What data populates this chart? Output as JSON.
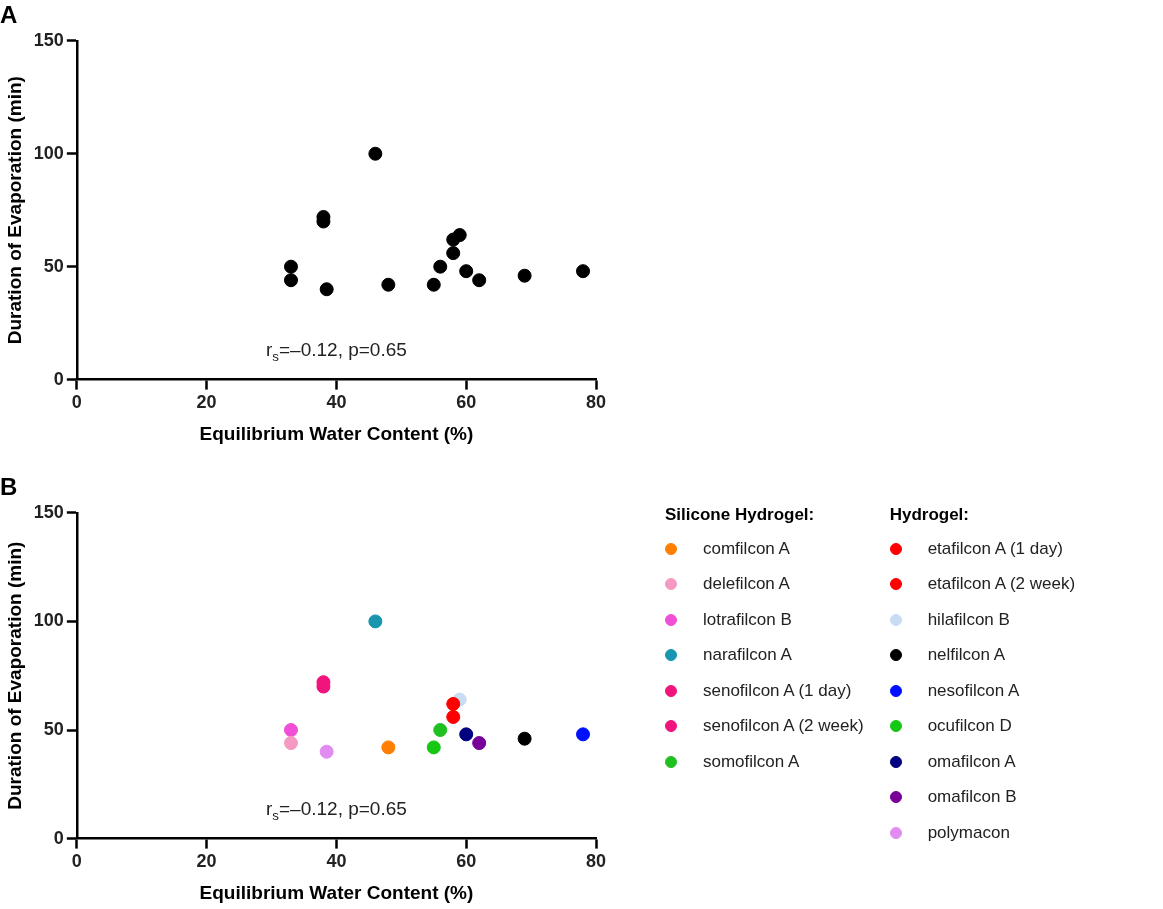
{
  "chart_data": [
    {
      "type": "scatter",
      "title": "A",
      "xlabel": "Equilibrium Water Content (%)",
      "ylabel": "Duration of Evaporation (min)",
      "xlim": [
        0,
        80
      ],
      "xticks": [
        0,
        20,
        40,
        60,
        80
      ],
      "ylim": [
        0,
        150
      ],
      "yticks": [
        0,
        50,
        100,
        150
      ],
      "grid": false,
      "legend": false,
      "marker": "circle",
      "annotations": [
        "r$_{s}$=–0.12, p=0.65"
      ],
      "series": [
        {
          "color": "#000000",
          "x": [
            33,
            33,
            38,
            38,
            38.5,
            46,
            48,
            55,
            56,
            58,
            58,
            59,
            60,
            62,
            69,
            78
          ],
          "values": [
            44,
            50,
            72,
            70,
            40,
            100,
            42,
            42,
            50,
            56,
            62,
            64,
            48,
            44,
            46,
            48
          ]
        }
      ]
    },
    {
      "type": "scatter",
      "title": "B",
      "xlabel": "Equilibrium Water Content (%)",
      "ylabel": "Duration of Evaporation (min)",
      "xlim": [
        0,
        80
      ],
      "xticks": [
        0,
        20,
        40,
        60,
        80
      ],
      "ylim": [
        0,
        150
      ],
      "yticks": [
        0,
        50,
        100,
        150
      ],
      "grid": false,
      "legend": "right",
      "marker": "circle",
      "annotations": [
        "r$_{s}$=–0.12, p=0.65"
      ],
      "series": [
        {
          "name": "Silicone Hydrogel:"
        },
        {
          "name": "comfilcon A",
          "color": "#ff8000",
          "x": [
            48
          ],
          "values": [
            42
          ]
        },
        {
          "name": "delefilcon A",
          "color": "#f49ac2",
          "x": [
            33
          ],
          "values": [
            44
          ]
        },
        {
          "name": "lotrafilcon B",
          "color": "#f050d8",
          "x": [
            33
          ],
          "values": [
            50
          ]
        },
        {
          "name": "narafilcon A",
          "color": "#1896b0",
          "x": [
            46
          ],
          "values": [
            100
          ]
        },
        {
          "name": "senofilcon A (1 day)",
          "color": "#f0147c",
          "x": [
            38
          ],
          "values": [
            72
          ]
        },
        {
          "name": "senofilcon A (2 week)",
          "color": "#f0147c",
          "x": [
            38
          ],
          "values": [
            70
          ]
        },
        {
          "name": "somofilcon A",
          "color": "#20c020",
          "x": [
            56
          ],
          "values": [
            50
          ]
        },
        {
          "name": "Hydrogel:"
        },
        {
          "name": "etafilcon A (1 day)",
          "color": "#ff0000",
          "x": [
            58
          ],
          "values": [
            56
          ]
        },
        {
          "name": "etafilcon A (2 week)",
          "color": "#ff0000",
          "x": [
            58
          ],
          "values": [
            62
          ]
        },
        {
          "name": "hilafilcon B",
          "color": "#c8dcf4",
          "x": [
            59
          ],
          "values": [
            64
          ]
        },
        {
          "name": "nelfilcon A",
          "color": "#000000",
          "x": [
            69
          ],
          "values": [
            46
          ]
        },
        {
          "name": "nesofilcon A",
          "color": "#0010ff",
          "x": [
            78
          ],
          "values": [
            48
          ]
        },
        {
          "name": "ocufilcon D",
          "color": "#14c814",
          "x": [
            55
          ],
          "values": [
            42
          ]
        },
        {
          "name": "omafilcon A",
          "color": "#000080",
          "x": [
            60
          ],
          "values": [
            48
          ]
        },
        {
          "name": "omafilcon B",
          "color": "#780098",
          "x": [
            62
          ],
          "values": [
            44
          ]
        },
        {
          "name": "polymacon",
          "color": "#e08cf0",
          "x": [
            38.5
          ],
          "values": [
            40
          ]
        }
      ]
    }
  ]
}
